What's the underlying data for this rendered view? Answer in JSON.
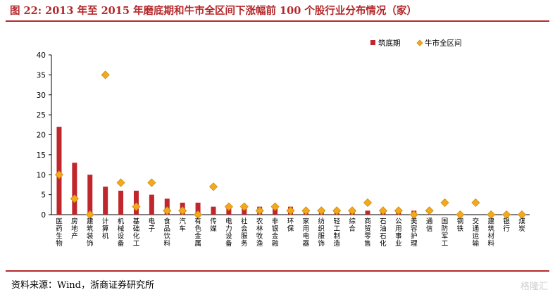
{
  "title": "图 22: 2013 年至 2015 年磨底期和牛市全区间下涨幅前 100 个股行业分布情况（家）",
  "source": "资料来源：Wind，浙商证券研究所",
  "watermark": "格隆汇",
  "colors": {
    "bar": "#c0272d",
    "marker": "#f2a91c",
    "marker_stroke": "#d08a10",
    "accent": "#b5282a"
  },
  "chart_data": {
    "type": "bar",
    "ylim": [
      0,
      40
    ],
    "yticks": [
      0,
      5,
      10,
      15,
      20,
      25,
      30,
      35,
      40
    ],
    "legend_position": "top-right",
    "categories": [
      "医药生物",
      "房地产",
      "建筑装饰",
      "计算机",
      "机械设备",
      "基础化工",
      "电子",
      "食品饮料",
      "汽车",
      "有色金属",
      "传媒",
      "电力设备",
      "社会服务",
      "农林牧渔",
      "非银金融",
      "环保",
      "家用电器",
      "纺织服饰",
      "轻工制造",
      "综合",
      "商贸零售",
      "石油石化",
      "公用事业",
      "美容护理",
      "通信",
      "国防军工",
      "钢铁",
      "交通运输",
      "建筑材料",
      "银行",
      "煤炭"
    ],
    "series": [
      {
        "name": "筑底期",
        "kind": "bar",
        "values": [
          22,
          13,
          10,
          7,
          6,
          6,
          5,
          4,
          3,
          3,
          2,
          2,
          2,
          2,
          2,
          2,
          1,
          1,
          1,
          1,
          1,
          1,
          1,
          1,
          0,
          0,
          0,
          0,
          0,
          0,
          0
        ]
      },
      {
        "name": "牛市全区间",
        "kind": "marker",
        "values": [
          10,
          4,
          0,
          35,
          8,
          2,
          8,
          1,
          1,
          0,
          7,
          2,
          2,
          1,
          2,
          1,
          1,
          1,
          1,
          1,
          3,
          1,
          1,
          0,
          1,
          3,
          0,
          3,
          0,
          0,
          0
        ]
      }
    ]
  }
}
